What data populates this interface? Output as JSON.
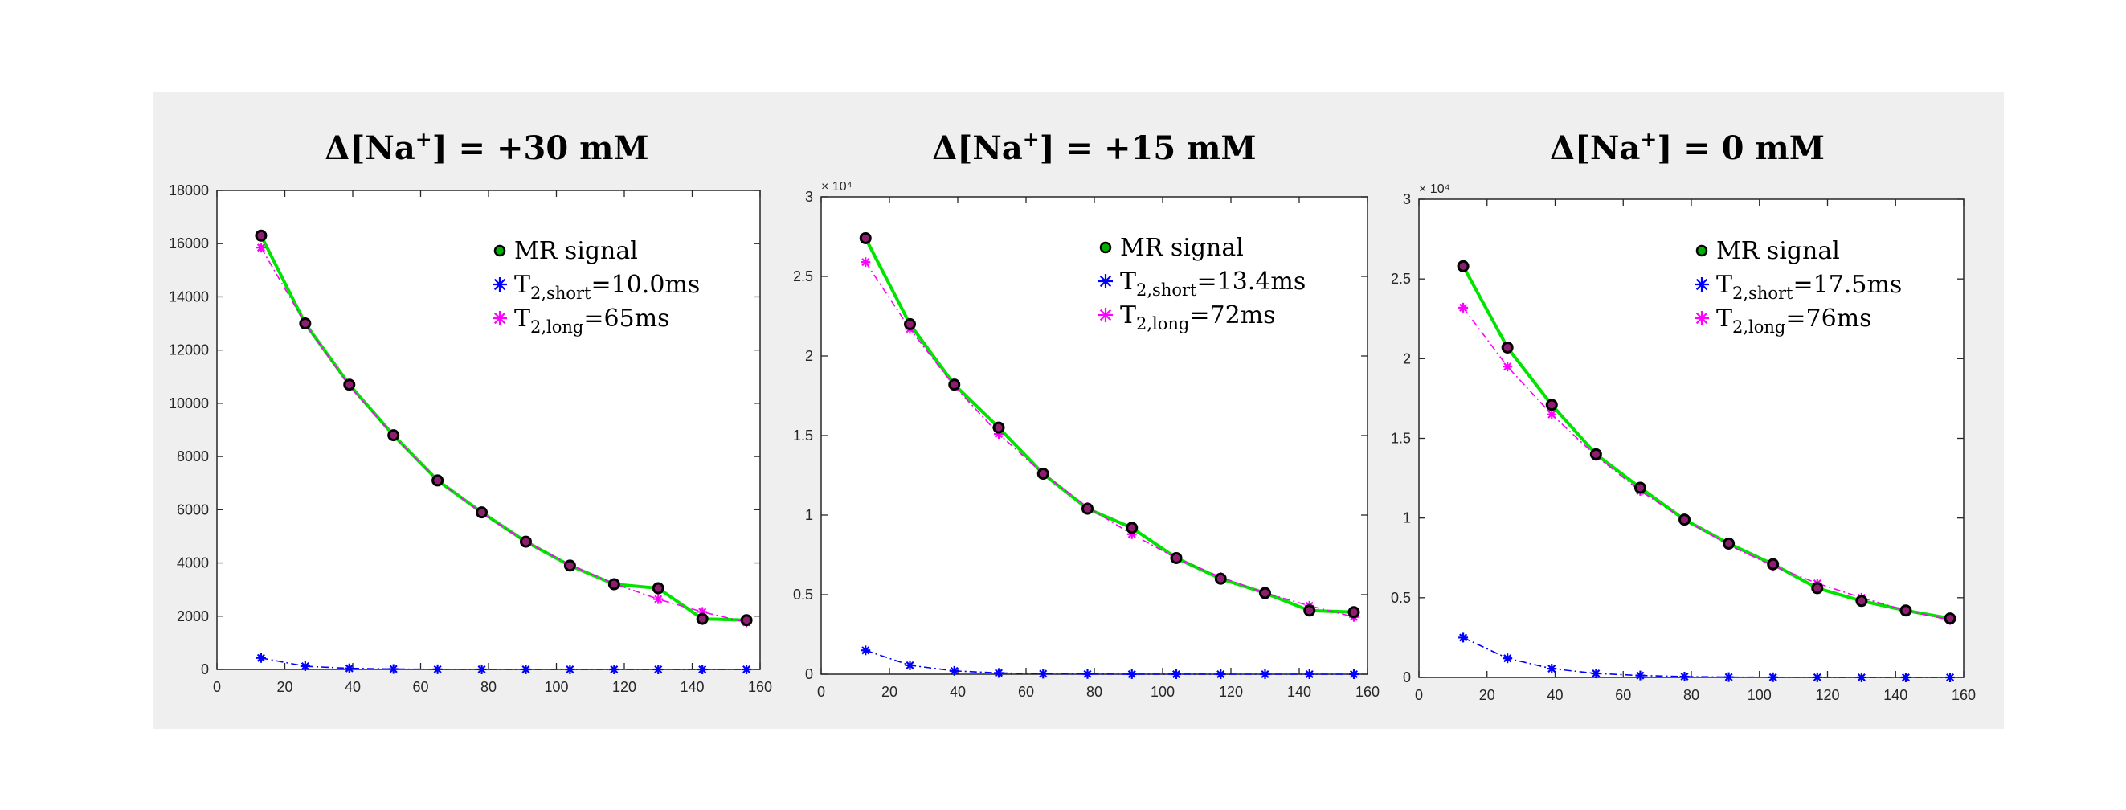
{
  "colors": {
    "background": "#efefef",
    "axes_bg": "#ffffff",
    "mr_line": "#00e400",
    "mr_marker_edge": "#000000",
    "mr_marker_face": "#8e1f6e",
    "short": "#0000ff",
    "long": "#ff00ff",
    "legend_mr_marker_face": "#00b000"
  },
  "chart_data": [
    {
      "type": "line",
      "title": "Δ[Na⁺] = +30 mM",
      "title_parts": {
        "prefix": "Δ[Na",
        "sup": "+",
        "suffix": "] = +30 mM"
      },
      "xlabel": "",
      "ylabel": "",
      "xlim": [
        0,
        160
      ],
      "ylim": [
        0,
        18000
      ],
      "xticks": [
        0,
        20,
        40,
        60,
        80,
        100,
        120,
        140,
        160
      ],
      "yticks": [
        0,
        2000,
        4000,
        6000,
        8000,
        10000,
        12000,
        14000,
        16000,
        18000
      ],
      "ytick_labels": [
        "0",
        "2000",
        "4000",
        "6000",
        "8000",
        "10000",
        "12000",
        "14000",
        "16000",
        "18000"
      ],
      "y_exponent_label": "",
      "x": [
        13,
        26,
        39,
        52,
        65,
        78,
        91,
        104,
        117,
        130,
        143,
        156
      ],
      "series": [
        {
          "name": "MR signal",
          "style": "mr",
          "values": [
            16300,
            13000,
            10700,
            8800,
            7100,
            5900,
            4800,
            3900,
            3200,
            3050,
            1900,
            1850
          ]
        },
        {
          "name": "T2,short",
          "style": "short",
          "values": [
            430,
            120,
            40,
            15,
            5,
            2,
            1,
            0,
            0,
            0,
            0,
            0
          ]
        },
        {
          "name": "T2,long",
          "style": "long",
          "values": [
            15850,
            13000,
            10650,
            8780,
            7100,
            5880,
            4800,
            3930,
            3220,
            2640,
            2160,
            1770
          ]
        }
      ],
      "legend": {
        "placement": "top-right",
        "entries": [
          {
            "series": "MR signal",
            "text": "MR signal",
            "sub": "",
            "suffix": ""
          },
          {
            "series": "T2,short",
            "text": "T",
            "sub": "2,short",
            "suffix": "=10.0ms"
          },
          {
            "series": "T2,long",
            "text": "T",
            "sub": "2,long",
            "suffix": "=65ms"
          }
        ]
      }
    },
    {
      "type": "line",
      "title": "Δ[Na⁺] = +15 mM",
      "title_parts": {
        "prefix": "Δ[Na",
        "sup": "+",
        "suffix": "] = +15 mM"
      },
      "xlabel": "",
      "ylabel": "",
      "xlim": [
        0,
        160
      ],
      "ylim": [
        0,
        30000
      ],
      "xticks": [
        0,
        20,
        40,
        60,
        80,
        100,
        120,
        140,
        160
      ],
      "yticks": [
        0,
        5000,
        10000,
        15000,
        20000,
        25000,
        30000
      ],
      "ytick_labels": [
        "0",
        "0.5",
        "1",
        "1.5",
        "2",
        "2.5",
        "3"
      ],
      "y_exponent_label": "× 10⁴",
      "x": [
        13,
        26,
        39,
        52,
        65,
        78,
        91,
        104,
        117,
        130,
        143,
        156
      ],
      "series": [
        {
          "name": "MR signal",
          "style": "mr",
          "values": [
            27400,
            22000,
            18200,
            15500,
            12600,
            10400,
            9200,
            7300,
            6000,
            5100,
            4000,
            3900
          ]
        },
        {
          "name": "T2,short",
          "style": "short",
          "values": [
            1500,
            560,
            210,
            80,
            30,
            11,
            4,
            2,
            0,
            0,
            0,
            0
          ]
        },
        {
          "name": "T2,long",
          "style": "long",
          "values": [
            25900,
            21700,
            18100,
            15100,
            12600,
            10500,
            8800,
            7300,
            6100,
            5100,
            4300,
            3600
          ]
        }
      ],
      "legend": {
        "placement": "top-right",
        "entries": [
          {
            "series": "MR signal",
            "text": "MR signal",
            "sub": "",
            "suffix": ""
          },
          {
            "series": "T2,short",
            "text": "T",
            "sub": "2,short",
            "suffix": "=13.4ms"
          },
          {
            "series": "T2,long",
            "text": "T",
            "sub": "2,long",
            "suffix": "=72ms"
          }
        ]
      }
    },
    {
      "type": "line",
      "title": "Δ[Na⁺] = 0 mM",
      "title_parts": {
        "prefix": "Δ[Na",
        "sup": "+",
        "suffix": "] = 0 mM"
      },
      "xlabel": "",
      "ylabel": "",
      "xlim": [
        0,
        160
      ],
      "ylim": [
        0,
        30000
      ],
      "xticks": [
        0,
        20,
        40,
        60,
        80,
        100,
        120,
        140,
        160
      ],
      "yticks": [
        0,
        5000,
        10000,
        15000,
        20000,
        25000,
        30000
      ],
      "ytick_labels": [
        "0",
        "0.5",
        "1",
        "1.5",
        "2",
        "2.5",
        "3"
      ],
      "y_exponent_label": "× 10⁴",
      "x": [
        13,
        26,
        39,
        52,
        65,
        78,
        91,
        104,
        117,
        130,
        143,
        156
      ],
      "series": [
        {
          "name": "MR signal",
          "style": "mr",
          "values": [
            25800,
            20700,
            17100,
            14000,
            11900,
            9900,
            8400,
            7100,
            5600,
            4800,
            4200,
            3700
          ]
        },
        {
          "name": "T2,short",
          "style": "short",
          "values": [
            2500,
            1200,
            550,
            250,
            120,
            50,
            20,
            10,
            5,
            2,
            1,
            0
          ]
        },
        {
          "name": "T2,long",
          "style": "long",
          "values": [
            23200,
            19500,
            16500,
            13900,
            11700,
            9900,
            8300,
            7000,
            5900,
            5000,
            4200,
            3600
          ]
        }
      ],
      "legend": {
        "placement": "top-right",
        "entries": [
          {
            "series": "MR signal",
            "text": "MR signal",
            "sub": "",
            "suffix": ""
          },
          {
            "series": "T2,short",
            "text": "T",
            "sub": "2,short",
            "suffix": "=17.5ms"
          },
          {
            "series": "T2,long",
            "text": "T",
            "sub": "2,long",
            "suffix": "=76ms"
          }
        ]
      }
    }
  ]
}
